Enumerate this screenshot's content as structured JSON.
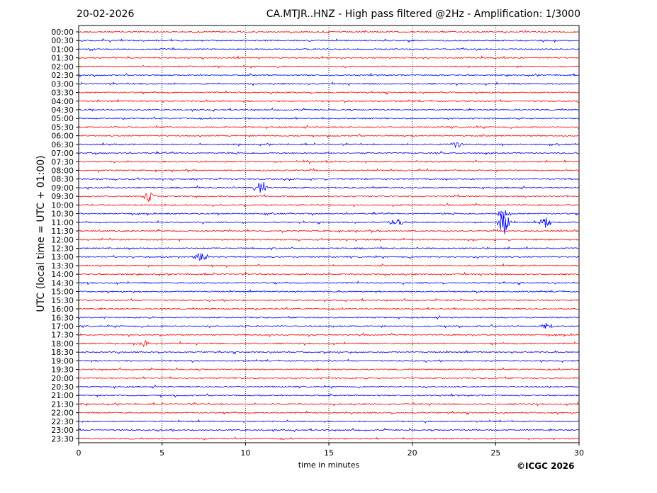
{
  "header": {
    "date": "20-02-2026",
    "title": "CA.MTJR..HNZ - High pass filtered @2Hz - Amplification: 1/3000"
  },
  "footer": {
    "copyright": "©ICGC 2026"
  },
  "colors": {
    "trace_a": "#ff0000",
    "trace_b": "#0000ff",
    "grid": "#000000"
  },
  "chart_data": {
    "type": "line",
    "xlabel": "time in minutes",
    "ylabel": "UTC (local time = UTC + 01:00)",
    "xlim": [
      0,
      30
    ],
    "x_ticks": [
      0,
      5,
      10,
      15,
      20,
      25,
      30
    ],
    "y_ticks": [
      "00:00",
      "00:30",
      "01:00",
      "01:30",
      "02:00",
      "02:30",
      "03:00",
      "03:30",
      "04:00",
      "04:30",
      "05:00",
      "05:30",
      "06:00",
      "06:30",
      "07:00",
      "07:30",
      "08:00",
      "08:30",
      "09:00",
      "09:30",
      "10:00",
      "10:30",
      "11:00",
      "11:30",
      "12:00",
      "12:30",
      "13:00",
      "13:30",
      "14:00",
      "14:30",
      "15:00",
      "15:30",
      "16:00",
      "16:30",
      "17:00",
      "17:30",
      "18:00",
      "18:30",
      "19:00",
      "19:30",
      "20:00",
      "20:30",
      "21:00",
      "21:30",
      "22:00",
      "22:30",
      "23:00",
      "23:30"
    ],
    "grid": "vertical dotted",
    "trace_colors": [
      "red",
      "blue"
    ],
    "events": [
      {
        "row": "09:00",
        "minute": 10.9,
        "amplitude": 0.7
      },
      {
        "row": "11:00",
        "minute": 25.5,
        "amplitude": 1.0
      },
      {
        "row": "11:00",
        "minute": 28.0,
        "amplitude": 0.5
      },
      {
        "row": "11:00",
        "minute": 19.0,
        "amplitude": 0.4
      },
      {
        "row": "13:00",
        "minute": 7.3,
        "amplitude": 0.4
      },
      {
        "row": "09:30",
        "minute": 4.2,
        "amplitude": 0.35
      },
      {
        "row": "06:30",
        "minute": 22.6,
        "amplitude": 0.3
      },
      {
        "row": "18:00",
        "minute": 3.9,
        "amplitude": 0.3
      },
      {
        "row": "17:00",
        "minute": 28.1,
        "amplitude": 0.3
      },
      {
        "row": "10:30",
        "minute": 25.5,
        "amplitude": 0.4
      }
    ]
  }
}
